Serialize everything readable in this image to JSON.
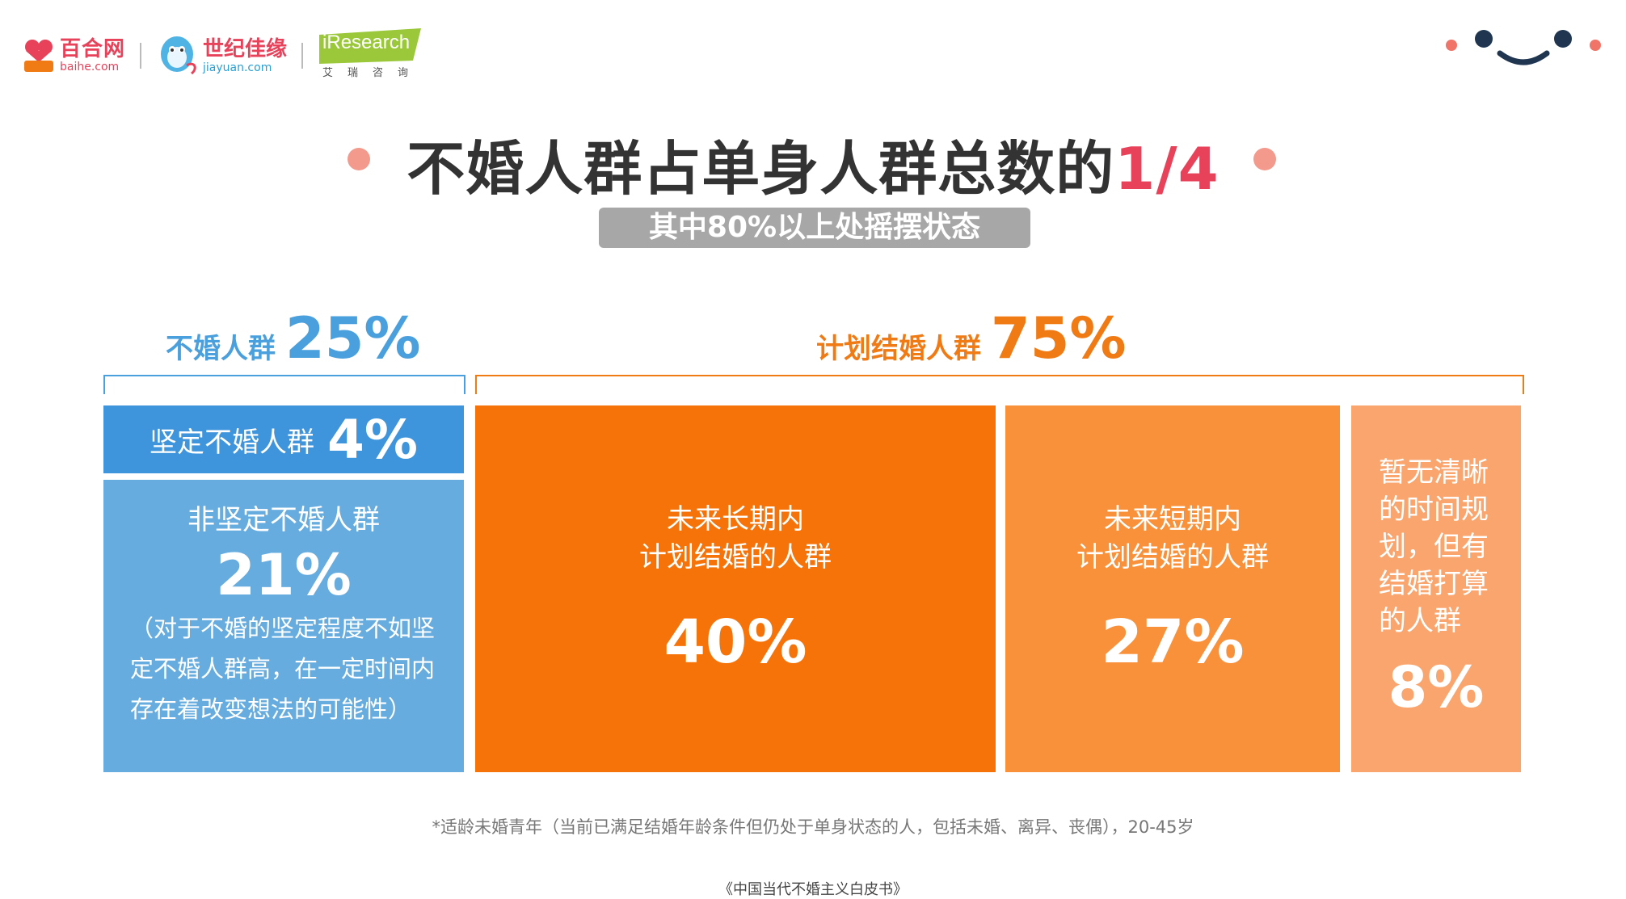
{
  "logos": {
    "baihe_cn": "百合网",
    "baihe_en": "baihe.com",
    "jiayuan_cn": "世纪佳缘",
    "jiayuan_en": "jiayuan.com",
    "iresearch_en": "iResearch",
    "iresearch_cn": "艾瑞咨询"
  },
  "title_main": "不婚人群占单身人群总数的",
  "title_highlight": "1/4",
  "subtitle": "其中80%以上处摇摆状态",
  "colors": {
    "blue_dark": "#3f95db",
    "blue_light": "#67acdf",
    "orange_dark": "#f57308",
    "orange_mid": "#f8913a",
    "orange_light": "#f9a56d",
    "highlight_red": "#e8425a"
  },
  "chart_data": {
    "type": "treemap",
    "groups": [
      {
        "label": "不婚人群",
        "pct_label": "25%",
        "value": 25,
        "items": [
          {
            "label": "坚定不婚人群",
            "pct_label": "4%",
            "value": 4
          },
          {
            "label": "非坚定不婚人群",
            "pct_label": "21%",
            "value": 21,
            "note": "（对于不婚的坚定程度不如坚定不婚人群高，在一定时间内存在着改变想法的可能性）"
          }
        ]
      },
      {
        "label": "计划结婚人群",
        "pct_label": "75%",
        "value": 75,
        "items": [
          {
            "label_line1": "未来长期内",
            "label_line2": "计划结婚的人群",
            "pct_label": "40%",
            "value": 40
          },
          {
            "label_line1": "未来短期内",
            "label_line2": "计划结婚的人群",
            "pct_label": "27%",
            "value": 27
          },
          {
            "label": "暂无清晰的时间规划，但有结婚打算的人群",
            "pct_label": "8%",
            "value": 8
          }
        ]
      }
    ]
  },
  "footnote": "*适龄未婚青年（当前已满足结婚年龄条件但仍处于单身状态的人，包括未婚、离异、丧偶），20-45岁",
  "source": "《中国当代不婚主义白皮书》"
}
